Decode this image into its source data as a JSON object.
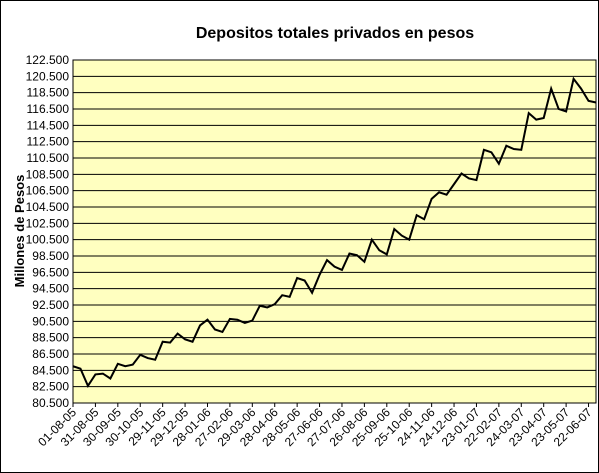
{
  "chart_data": {
    "type": "line",
    "title": "Depositos totales privados en pesos",
    "y_label": "Millones de Pesos",
    "x": [
      "01-08-05",
      "11-08-05",
      "21-08-05",
      "31-08-05",
      "10-09-05",
      "20-09-05",
      "30-09-05",
      "10-10-05",
      "20-10-05",
      "30-10-05",
      "09-11-05",
      "19-11-05",
      "29-11-05",
      "09-12-05",
      "19-12-05",
      "29-12-05",
      "08-01-06",
      "18-01-06",
      "28-01-06",
      "07-02-06",
      "17-02-06",
      "27-02-06",
      "09-03-06",
      "19-03-06",
      "29-03-06",
      "08-04-06",
      "18-04-06",
      "28-04-06",
      "08-05-06",
      "18-05-06",
      "28-05-06",
      "07-06-06",
      "17-06-06",
      "27-06-06",
      "07-07-06",
      "17-07-06",
      "27-07-06",
      "06-08-06",
      "16-08-06",
      "26-08-06",
      "05-09-06",
      "15-09-06",
      "25-09-06",
      "05-10-06",
      "15-10-06",
      "25-10-06",
      "04-11-06",
      "14-11-06",
      "24-11-06",
      "04-12-06",
      "14-12-06",
      "24-12-06",
      "03-01-07",
      "13-01-07",
      "23-01-07",
      "02-02-07",
      "12-02-07",
      "22-02-07",
      "04-03-07",
      "14-03-07",
      "24-03-07",
      "03-04-07",
      "13-04-07",
      "23-04-07",
      "03-05-07",
      "13-05-07",
      "23-05-07",
      "02-06-07",
      "12-06-07",
      "22-06-07",
      "02-07-07"
    ],
    "series": [
      {
        "name": "Depositos",
        "color": "#000000",
        "values": [
          85000,
          84700,
          82600,
          84000,
          84100,
          83500,
          85300,
          85000,
          85200,
          86400,
          86000,
          85800,
          88000,
          87900,
          89000,
          88300,
          88000,
          90000,
          90700,
          89500,
          89200,
          90800,
          90700,
          90300,
          90600,
          92400,
          92200,
          92600,
          93700,
          93500,
          95800,
          95500,
          94000,
          96200,
          98000,
          97200,
          96800,
          98800,
          98600,
          97800,
          100500,
          99200,
          98700,
          101800,
          101000,
          100500,
          103500,
          103000,
          105500,
          106300,
          106000,
          107300,
          108600,
          108000,
          107800,
          111500,
          111200,
          109800,
          112000,
          111600,
          111500,
          116000,
          115200,
          115400,
          119000,
          116500,
          116200,
          120200,
          119000,
          117500,
          117300
        ]
      }
    ],
    "xlim": [
      "01-08-05",
      "02-07-07"
    ],
    "xticks": [
      "01-08-05",
      "31-08-05",
      "30-09-05",
      "30-10-05",
      "29-11-05",
      "29-12-05",
      "28-01-06",
      "27-02-06",
      "29-03-06",
      "28-04-06",
      "28-05-06",
      "27-06-06",
      "27-07-06",
      "26-08-06",
      "25-09-06",
      "25-10-06",
      "24-11-06",
      "24-12-06",
      "23-01-07",
      "22-02-07",
      "24-03-07",
      "23-04-07",
      "23-05-07",
      "22-06-07"
    ],
    "ylim": [
      80500,
      122500
    ],
    "yticks": [
      {
        "value": 80500,
        "label": "80.500"
      },
      {
        "value": 82500,
        "label": "82.500"
      },
      {
        "value": 84500,
        "label": "84.500"
      },
      {
        "value": 86500,
        "label": "86.500"
      },
      {
        "value": 88500,
        "label": "88.500"
      },
      {
        "value": 90500,
        "label": "90.500"
      },
      {
        "value": 92500,
        "label": "92.500"
      },
      {
        "value": 94500,
        "label": "94.500"
      },
      {
        "value": 96500,
        "label": "96.500"
      },
      {
        "value": 98500,
        "label": "98.500"
      },
      {
        "value": 100500,
        "label": "100.500"
      },
      {
        "value": 102500,
        "label": "102.500"
      },
      {
        "value": 104500,
        "label": "104.500"
      },
      {
        "value": 106500,
        "label": "106.500"
      },
      {
        "value": 108500,
        "label": "108.500"
      },
      {
        "value": 110500,
        "label": "110.500"
      },
      {
        "value": 112500,
        "label": "112.500"
      },
      {
        "value": 114500,
        "label": "114.500"
      },
      {
        "value": 116500,
        "label": "116.500"
      },
      {
        "value": 118500,
        "label": "118.500"
      },
      {
        "value": 120500,
        "label": "120.500"
      },
      {
        "value": 122500,
        "label": "122.500"
      }
    ],
    "grid": true,
    "plot_background": "#ffffc0"
  }
}
